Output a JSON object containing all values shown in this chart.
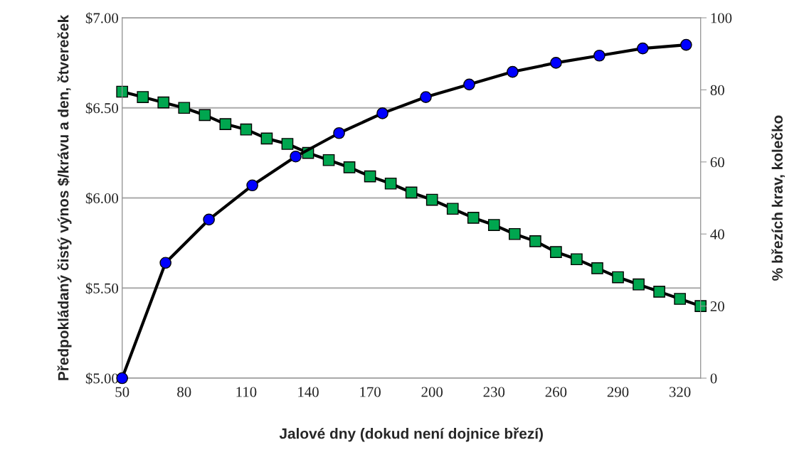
{
  "chart_data": {
    "type": "line",
    "xlabel": "Jalové dny (dokud není dojnice březí)",
    "ylabel": "Předpokládaný čistý výnos $/krávu a den, čtvereček",
    "y2label": "% březích krav, kolečko",
    "series": [
      {
        "color": "#00a64f",
        "marker": "square",
        "x": [
          50,
          60,
          70,
          80,
          90,
          100,
          110,
          120,
          130,
          140,
          150,
          160,
          170,
          180,
          190,
          200,
          210,
          220,
          230,
          240,
          250,
          260,
          270,
          280,
          290,
          300,
          310,
          320,
          330
        ],
        "values": [
          6.59,
          6.56,
          6.53,
          6.5,
          6.46,
          6.41,
          6.38,
          6.33,
          6.3,
          6.25,
          6.21,
          6.17,
          6.12,
          6.08,
          6.03,
          5.99,
          5.94,
          5.89,
          5.85,
          5.8,
          5.76,
          5.7,
          5.66,
          5.61,
          5.56,
          5.52,
          5.48,
          5.44,
          5.4
        ]
      },
      {
        "color": "#0000ff",
        "marker": "circle",
        "axis": "y2",
        "x": [
          50,
          71,
          92,
          113,
          134,
          155,
          176,
          197,
          218,
          239,
          260,
          281,
          302,
          323
        ],
        "values": [
          0,
          32,
          44,
          53.5,
          61.5,
          68,
          73.5,
          78,
          81.5,
          85,
          87.5,
          89.5,
          91.5,
          92.5
        ]
      }
    ],
    "xlim": [
      50,
      330
    ],
    "xticks": [
      50,
      80,
      110,
      140,
      170,
      200,
      230,
      260,
      290,
      320
    ],
    "ylim": [
      5,
      7
    ],
    "yticks": [
      {
        "value": 5,
        "label": "$5.00"
      },
      {
        "value": 5.5,
        "label": "$5.50"
      },
      {
        "value": 6,
        "label": "$6.00"
      },
      {
        "value": 6.5,
        "label": "$6.50"
      },
      {
        "value": 7,
        "label": "$7.00"
      }
    ],
    "y2lim": [
      0,
      100
    ],
    "y2ticks": [
      0,
      20,
      40,
      60,
      80,
      100
    ],
    "grid": "y",
    "line_style": "solid",
    "legend": false
  }
}
